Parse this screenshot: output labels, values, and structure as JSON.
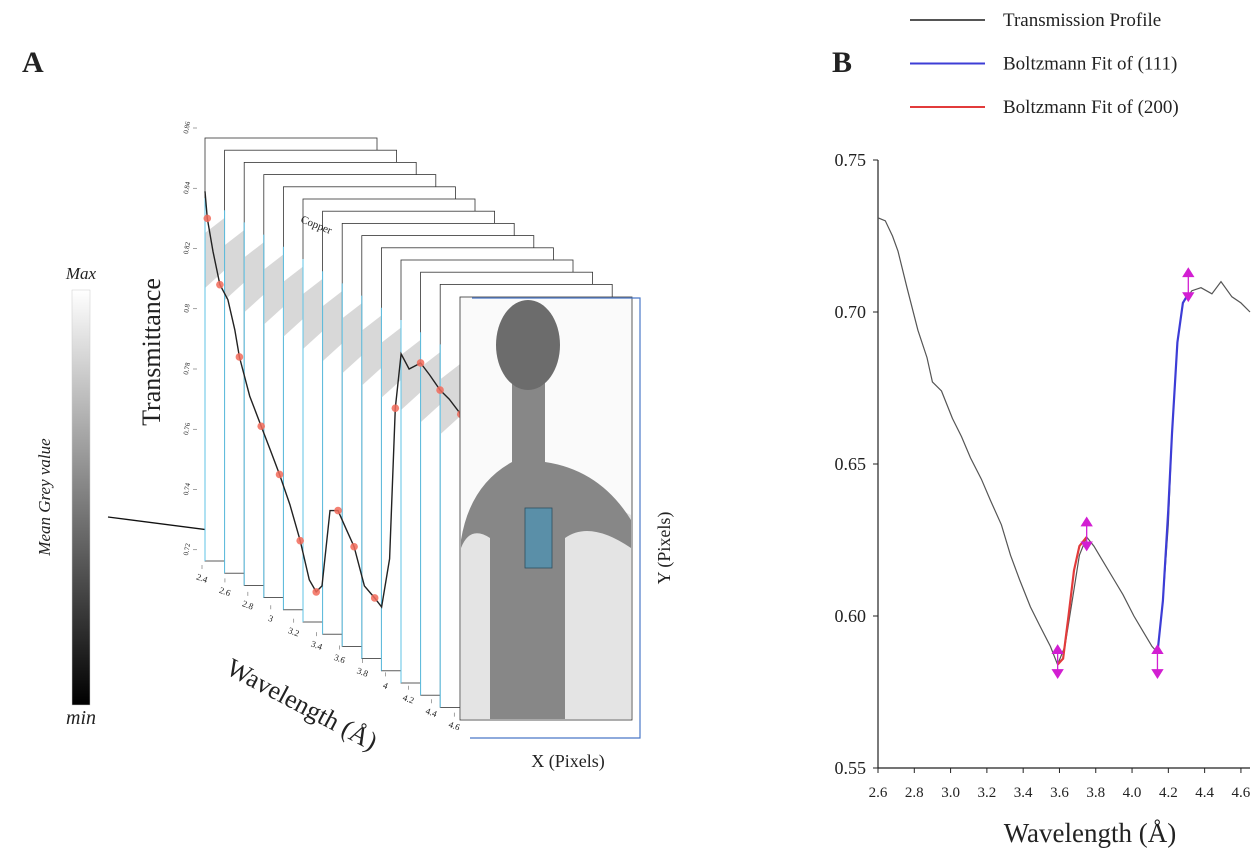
{
  "panel_labels": [
    "A",
    "B"
  ],
  "colorbar": {
    "max_label": "Max",
    "min_label": "min",
    "title": "Mean Grey value"
  },
  "image_labels": {
    "material": "Copper",
    "x_axis": "X (Pixels)",
    "y_axis": "Y (Pixels)"
  },
  "chart_data": [
    {
      "type": "line3d",
      "y_label": "Transmittance",
      "x_label": "Wavelength (Å)",
      "color": "#222222",
      "x": [
        2.4,
        2.42,
        2.47,
        2.53,
        2.6,
        2.66,
        2.7,
        2.79,
        2.89,
        2.97,
        3.05,
        3.14,
        3.23,
        3.31,
        3.37,
        3.42,
        3.49,
        3.56,
        3.63,
        3.7,
        3.79,
        3.88,
        3.94,
        4.01,
        4.06,
        4.11,
        4.18,
        4.28,
        4.36,
        4.45,
        4.53,
        4.63
      ],
      "values": [
        0.839,
        0.83,
        0.819,
        0.808,
        0.803,
        0.793,
        0.784,
        0.771,
        0.761,
        0.753,
        0.745,
        0.735,
        0.723,
        0.71,
        0.706,
        0.708,
        0.733,
        0.733,
        0.727,
        0.721,
        0.708,
        0.704,
        0.701,
        0.717,
        0.767,
        0.785,
        0.78,
        0.782,
        0.778,
        0.773,
        0.77,
        0.765
      ],
      "points": {
        "color": "#f26b5b",
        "x": [
          2.42,
          2.53,
          2.7,
          2.89,
          3.05,
          3.23,
          3.37,
          3.56,
          3.7,
          3.88,
          4.06,
          4.28,
          4.45,
          4.63
        ],
        "values": [
          0.83,
          0.808,
          0.784,
          0.761,
          0.745,
          0.723,
          0.706,
          0.733,
          0.721,
          0.704,
          0.767,
          0.782,
          0.773,
          0.765
        ]
      },
      "xlim": [
        2.4,
        4.65
      ],
      "ylim": [
        0.7,
        0.86
      ],
      "xticks": [
        2.4,
        2.6,
        2.8,
        3,
        3.2,
        3.4,
        3.6,
        3.8,
        4,
        4.2,
        4.4,
        4.6
      ],
      "yticks": [
        0.86,
        0.84,
        0.82,
        0.8,
        0.78,
        0.76,
        0.74,
        0.72
      ]
    },
    {
      "type": "line",
      "x_label": "Wavelength (Å)",
      "xlim": [
        2.6,
        4.65
      ],
      "ylim": [
        0.55,
        0.75
      ],
      "xticks": [
        2.6,
        2.8,
        {
          "value": 3,
          "label": "3.0"
        },
        3.2,
        3.4,
        3.6,
        3.8,
        {
          "value": 4,
          "label": "4.0"
        },
        4.2,
        4.4,
        4.6
      ],
      "yticks": [
        0.75,
        {
          "value": 0.7,
          "label": "0.70"
        },
        0.65,
        {
          "value": 0.6,
          "label": "0.60"
        },
        0.55
      ],
      "series": [
        {
          "name": "Transmission Profile",
          "color": "#555555",
          "x": [
            2.6,
            2.64,
            2.68,
            2.71,
            2.76,
            2.82,
            2.87,
            2.9,
            2.95,
            3.01,
            3.06,
            3.11,
            3.17,
            3.22,
            3.28,
            3.33,
            3.38,
            3.44,
            3.49,
            3.55,
            3.59,
            3.63,
            3.67,
            3.71,
            3.75,
            3.79,
            3.84,
            3.9,
            3.95,
            4.01,
            4.06,
            4.11,
            4.14,
            4.17,
            4.2,
            4.22,
            4.25,
            4.28,
            4.33,
            4.38,
            4.44,
            4.49,
            4.55,
            4.6,
            4.65
          ],
          "values": [
            0.731,
            0.73,
            0.725,
            0.72,
            0.708,
            0.694,
            0.685,
            0.677,
            0.674,
            0.665,
            0.659,
            0.652,
            0.645,
            0.638,
            0.63,
            0.62,
            0.612,
            0.603,
            0.597,
            0.59,
            0.584,
            0.59,
            0.605,
            0.62,
            0.626,
            0.623,
            0.618,
            0.612,
            0.607,
            0.6,
            0.595,
            0.59,
            0.588,
            0.605,
            0.63,
            0.66,
            0.69,
            0.703,
            0.707,
            0.708,
            0.706,
            0.71,
            0.705,
            0.703,
            0.7
          ]
        },
        {
          "name": "Boltzmann Fit of (111)",
          "color": "#3d3dd6",
          "x": [
            4.14,
            4.17,
            4.2,
            4.22,
            4.25,
            4.28,
            4.31
          ],
          "values": [
            0.588,
            0.605,
            0.635,
            0.66,
            0.69,
            0.703,
            0.706
          ]
        },
        {
          "name": "Boltzmann Fit of (200)",
          "color": "#e23b3b",
          "x": [
            3.59,
            3.62,
            3.65,
            3.68,
            3.71,
            3.75
          ],
          "values": [
            0.584,
            0.586,
            0.6,
            0.615,
            0.623,
            0.626
          ]
        }
      ],
      "error_bars": {
        "color": "#d21fd2",
        "x": [
          3.59,
          3.75,
          4.14,
          4.31
        ],
        "values": [
          0.585,
          0.627,
          0.585,
          0.709
        ],
        "errors": [
          0.005,
          0.005,
          0.005,
          0.005
        ]
      }
    }
  ]
}
